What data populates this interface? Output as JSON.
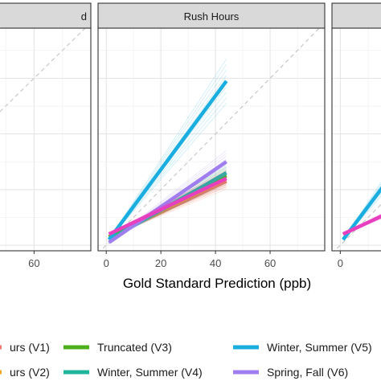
{
  "chart_data": {
    "type": "line",
    "panels": [
      {
        "title": "d",
        "x_tick_labels": [
          "60"
        ]
      },
      {
        "title": "Rush Hours",
        "x_tick_labels": [
          "0",
          "20",
          "40",
          "60"
        ]
      },
      {
        "title": "",
        "x_tick_labels": [
          "0"
        ]
      }
    ],
    "xlabel": "Gold Standard Prediction (ppb)",
    "xlim": [
      -3,
      80
    ],
    "ylim": [
      -2,
      78
    ],
    "reference_line": "y = x (dashed)",
    "legend_position": "bottom",
    "series": [
      {
        "name": "urs (V1)",
        "color": "#f8766d",
        "x": [
          1,
          44
        ],
        "y": [
          3,
          23
        ]
      },
      {
        "name": "urs (V2)",
        "color": "#f5a623",
        "x": [
          1,
          44
        ],
        "y": [
          3,
          24
        ]
      },
      {
        "name": "Truncated (V3)",
        "color": "#4daf1a",
        "x": [
          1,
          44
        ],
        "y": [
          3,
          25
        ]
      },
      {
        "name": "Winter, Summer (V4)",
        "color": "#1fb59a",
        "x": [
          1,
          44
        ],
        "y": [
          2,
          26
        ]
      },
      {
        "name": "Winter, Summer (V5)",
        "color": "#1aaee0",
        "x": [
          1,
          44
        ],
        "y": [
          2,
          59
        ]
      },
      {
        "name": "Spring, Fall (V6)",
        "color": "#a07ef0",
        "x": [
          1,
          44
        ],
        "y": [
          1,
          30
        ]
      },
      {
        "name": "",
        "color": "#e83fbf",
        "x": [
          1,
          44
        ],
        "y": [
          4,
          24
        ]
      }
    ]
  }
}
